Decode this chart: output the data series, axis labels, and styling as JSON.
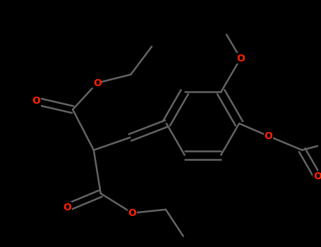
{
  "bg_color": "#000000",
  "bond_color": "#646464",
  "oxygen_color": "#ff2200",
  "line_width": 1.8,
  "figsize": [
    4.55,
    3.5
  ],
  "dpi": 100,
  "xlim": [
    0,
    455
  ],
  "ylim": [
    0,
    350
  ]
}
